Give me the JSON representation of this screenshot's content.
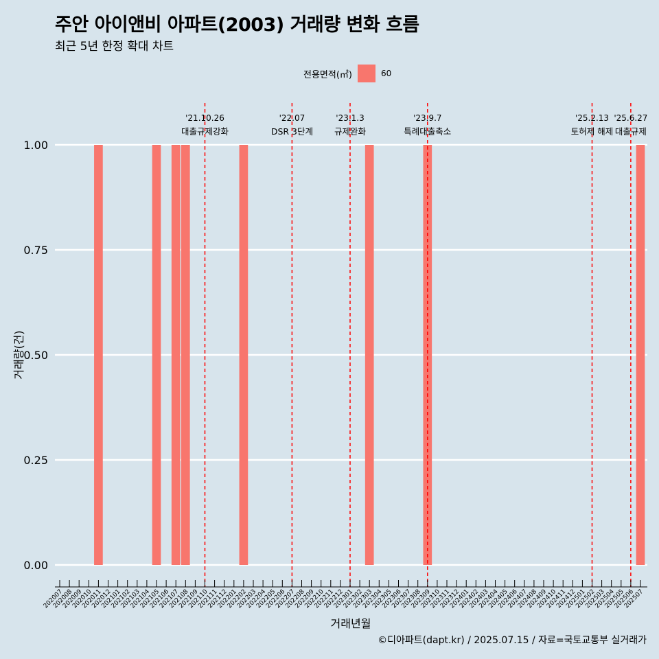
{
  "title": "주안 아이앤비 아파트(2003) 거래량 변화 흐름",
  "subtitle": "최근 5년 한정 확대 차트",
  "caption": "©디아파트(dapt.kr) / 2025.07.15 / 자료=국토교통부 실거래가",
  "legend": {
    "title": "전용면적(㎡)",
    "items": [
      {
        "label": "60",
        "color": "#f8766d"
      }
    ]
  },
  "colors": {
    "background": "#d7e4ec",
    "bar": "#f8766d",
    "event_line": "#ff0000",
    "grid": "#ffffff"
  },
  "chart_data": {
    "type": "bar",
    "xlabel": "거래년월",
    "ylabel": "거래량(건)",
    "ylim": [
      0,
      1
    ],
    "yticks": [
      "0.00",
      "0.25",
      "0.50",
      "0.75",
      "1.00"
    ],
    "grid": "horizontal",
    "legend_position": "top",
    "categories": [
      "202007",
      "202008",
      "202009",
      "202010",
      "202011",
      "202012",
      "202101",
      "202102",
      "202103",
      "202104",
      "202105",
      "202106",
      "202107",
      "202108",
      "202109",
      "202110",
      "202111",
      "202112",
      "202201",
      "202202",
      "202203",
      "202204",
      "202205",
      "202206",
      "202207",
      "202208",
      "202209",
      "202210",
      "202211",
      "202212",
      "202301",
      "202302",
      "202303",
      "202304",
      "202305",
      "202306",
      "202307",
      "202308",
      "202309",
      "202310",
      "202311",
      "202312",
      "202401",
      "202402",
      "202403",
      "202404",
      "202405",
      "202406",
      "202407",
      "202408",
      "202409",
      "202410",
      "202411",
      "202412",
      "202501",
      "202502",
      "202503",
      "202504",
      "202505",
      "202506",
      "202507"
    ],
    "series": [
      {
        "name": "60",
        "color": "#f8766d",
        "values": [
          0,
          0,
          0,
          0,
          1,
          0,
          0,
          0,
          0,
          0,
          1,
          0,
          1,
          1,
          0,
          0,
          0,
          0,
          0,
          1,
          0,
          0,
          0,
          0,
          0,
          0,
          0,
          0,
          0,
          0,
          0,
          0,
          1,
          0,
          0,
          0,
          0,
          0,
          1,
          0,
          0,
          0,
          0,
          0,
          0,
          0,
          0,
          0,
          0,
          0,
          0,
          0,
          0,
          0,
          0,
          0,
          0,
          0,
          0,
          0,
          1
        ]
      }
    ],
    "events": [
      {
        "x": "202110",
        "date": "'21.10.26",
        "label": "대출규제강화"
      },
      {
        "x": "202207",
        "date": "'22.07",
        "label": "DSR 3단계"
      },
      {
        "x": "202301",
        "date": "'23.1.3",
        "label": "규제완화"
      },
      {
        "x": "202309",
        "date": "'23.9.7",
        "label": "특례대출축소"
      },
      {
        "x": "202502",
        "date": "'25.2.13",
        "label": "토허제 해제"
      },
      {
        "x": "202506",
        "date": "'25.6.27",
        "label": "대출규제"
      }
    ]
  }
}
